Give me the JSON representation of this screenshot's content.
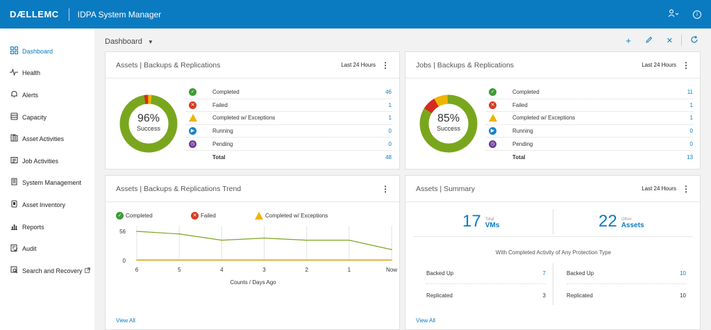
{
  "header": {
    "brand": "DÆLLEMC",
    "app_title": "IDPA System Manager",
    "user_icon": "user-icon",
    "info_icon": "info-icon"
  },
  "sidebar": {
    "items": [
      {
        "label": "Dashboard",
        "icon": "dashboard-icon",
        "active": true
      },
      {
        "label": "Health",
        "icon": "health-icon"
      },
      {
        "label": "Alerts",
        "icon": "bell-icon"
      },
      {
        "label": "Capacity",
        "icon": "database-icon"
      },
      {
        "label": "Asset Activities",
        "icon": "asset-activities-icon"
      },
      {
        "label": "Job Activities",
        "icon": "job-activities-icon"
      },
      {
        "label": "System Management",
        "icon": "system-management-icon"
      },
      {
        "label": "Asset Inventory",
        "icon": "asset-inventory-icon"
      },
      {
        "label": "Reports",
        "icon": "bar-chart-icon"
      },
      {
        "label": "Audit",
        "icon": "audit-icon"
      },
      {
        "label": "Search and Recovery",
        "icon": "search-recovery-icon"
      }
    ]
  },
  "main": {
    "title": "Dashboard",
    "toolbar": [
      "add-icon",
      "edit-icon",
      "close-icon",
      "refresh-icon"
    ]
  },
  "assets_panel": {
    "title": "Assets | Backups & Replications",
    "range": "Last 24 Hours",
    "donut_pct": "96%",
    "donut_label": "Success",
    "rows": [
      {
        "label": "Completed",
        "value": "46",
        "status": "completed"
      },
      {
        "label": "Failed",
        "value": "1",
        "status": "failed"
      },
      {
        "label": "Completed w/ Exceptions",
        "value": "1",
        "status": "exceptions"
      },
      {
        "label": "Running",
        "value": "0",
        "status": "running"
      },
      {
        "label": "Pending",
        "value": "0",
        "status": "pending"
      }
    ],
    "total_label": "Total",
    "total_value": "48"
  },
  "jobs_panel": {
    "title": "Jobs | Backups & Replications",
    "range": "Last 24 Hours",
    "donut_pct": "85%",
    "donut_label": "Success",
    "rows": [
      {
        "label": "Completed",
        "value": "11",
        "status": "completed"
      },
      {
        "label": "Failed",
        "value": "1",
        "status": "failed"
      },
      {
        "label": "Completed w/ Exceptions",
        "value": "1",
        "status": "exceptions"
      },
      {
        "label": "Running",
        "value": "0",
        "status": "running"
      },
      {
        "label": "Pending",
        "value": "0",
        "status": "pending"
      }
    ],
    "total_label": "Total",
    "total_value": "13"
  },
  "trend_panel": {
    "title": "Assets | Backups & Replications Trend",
    "legend": [
      "Completed",
      "Failed",
      "Completed w/ Exceptions"
    ],
    "view_all": "View All"
  },
  "summary_panel": {
    "title": "Assets | Summary",
    "range": "Last 24 Hours",
    "vms_count": "17",
    "vms_sub": "Total",
    "vms_unit": "VMs",
    "assets_count": "22",
    "assets_sub": "Other",
    "assets_unit": "Assets",
    "caption": "With Completed Activity of Any Protection Type",
    "left_rows": [
      {
        "label": "Backed Up",
        "value": "7"
      },
      {
        "label": "Replicated",
        "value": "3"
      }
    ],
    "right_rows": [
      {
        "label": "Backed Up",
        "value": "10"
      },
      {
        "label": "Replicated",
        "value": "10"
      }
    ],
    "view_all": "View All"
  },
  "colors": {
    "brand_blue": "#0a7bc1",
    "completed": "#7aa61e",
    "failed": "#d62b1e",
    "exceptions": "#f0b400"
  },
  "chart_data": {
    "type": "line",
    "title": "",
    "xlabel": "Counts / Days Ago",
    "ylabel": "",
    "categories": [
      "6",
      "5",
      "4",
      "3",
      "2",
      "1",
      "Now"
    ],
    "y_ticks": [
      "56",
      "0"
    ],
    "ylim": [
      0,
      56
    ],
    "series": [
      {
        "name": "Completed",
        "color": "#7aa61e",
        "values": [
          56,
          51,
          39,
          43,
          39,
          39,
          21
        ]
      },
      {
        "name": "Failed",
        "color": "#d62b1e",
        "values": [
          1,
          1,
          1,
          1,
          1,
          1,
          1
        ]
      },
      {
        "name": "Completed w/ Exceptions",
        "color": "#f0b400",
        "values": [
          1,
          1,
          1,
          1,
          1,
          1,
          1
        ]
      }
    ],
    "grid": "vertical"
  }
}
